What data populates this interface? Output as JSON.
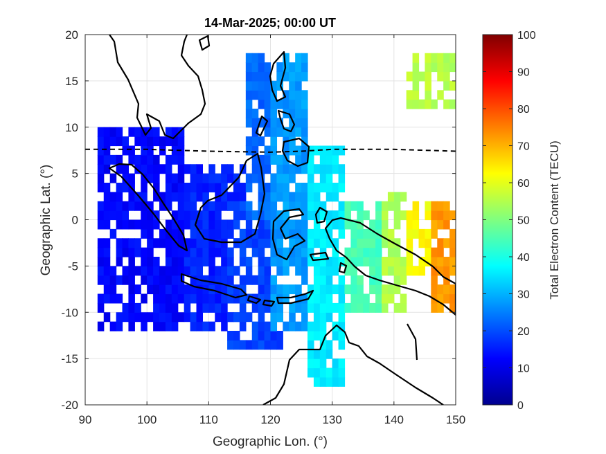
{
  "chart_data": {
    "type": "heatmap",
    "title": "14-Mar-2025; 00:00 UT",
    "xlabel": "Geographic Lon. (°)",
    "ylabel": "Geographic Lat. (°)",
    "colorbar_label": "Total Electron Content (TECU)",
    "xlim": [
      90,
      150
    ],
    "ylim": [
      -20,
      20
    ],
    "clim": [
      0,
      100
    ],
    "xticks": [
      "90",
      "100",
      "110",
      "120",
      "130",
      "140",
      "150"
    ],
    "yticks": [
      "20",
      "15",
      "10",
      "5",
      "0",
      "-5",
      "-10",
      "-15",
      "-20"
    ],
    "cticks": [
      "100",
      "90",
      "80",
      "70",
      "60",
      "50",
      "40",
      "30",
      "20",
      "10",
      "0"
    ],
    "grid": true,
    "colormap": "jet",
    "magnetic_equator_lat_at_lon": [
      [
        90,
        7.6
      ],
      [
        100,
        7.6
      ],
      [
        110,
        7.4
      ],
      [
        120,
        7.3
      ],
      [
        125,
        7.4
      ],
      [
        130,
        7.6
      ],
      [
        140,
        7.6
      ],
      [
        150,
        7.4
      ]
    ],
    "tec_zones": [
      {
        "lon": [
          92,
          106
        ],
        "lat": [
          -12,
          10
        ],
        "tec": 12
      },
      {
        "lon": [
          106,
          116
        ],
        "lat": [
          -12,
          6
        ],
        "tec": 15
      },
      {
        "lon": [
          113,
          122
        ],
        "lat": [
          -14,
          2
        ],
        "tec": 18
      },
      {
        "lon": [
          116,
          122
        ],
        "lat": [
          0,
          18
        ],
        "tec": 22
      },
      {
        "lon": [
          120,
          126
        ],
        "lat": [
          -12,
          18
        ],
        "tec": 27
      },
      {
        "lon": [
          126,
          132
        ],
        "lat": [
          -18,
          8
        ],
        "tec": 35
      },
      {
        "lon": [
          132,
          138
        ],
        "lat": [
          -10,
          2
        ],
        "tec": 44
      },
      {
        "lon": [
          138,
          142
        ],
        "lat": [
          -10,
          3
        ],
        "tec": 54
      },
      {
        "lon": [
          142,
          146
        ],
        "lat": [
          -6,
          2
        ],
        "tec": 62
      },
      {
        "lon": [
          146,
          150
        ],
        "lat": [
          -10,
          2
        ],
        "tec": 72
      },
      {
        "lon": [
          142,
          150
        ],
        "lat": [
          12,
          18
        ],
        "tec": 55
      }
    ]
  }
}
